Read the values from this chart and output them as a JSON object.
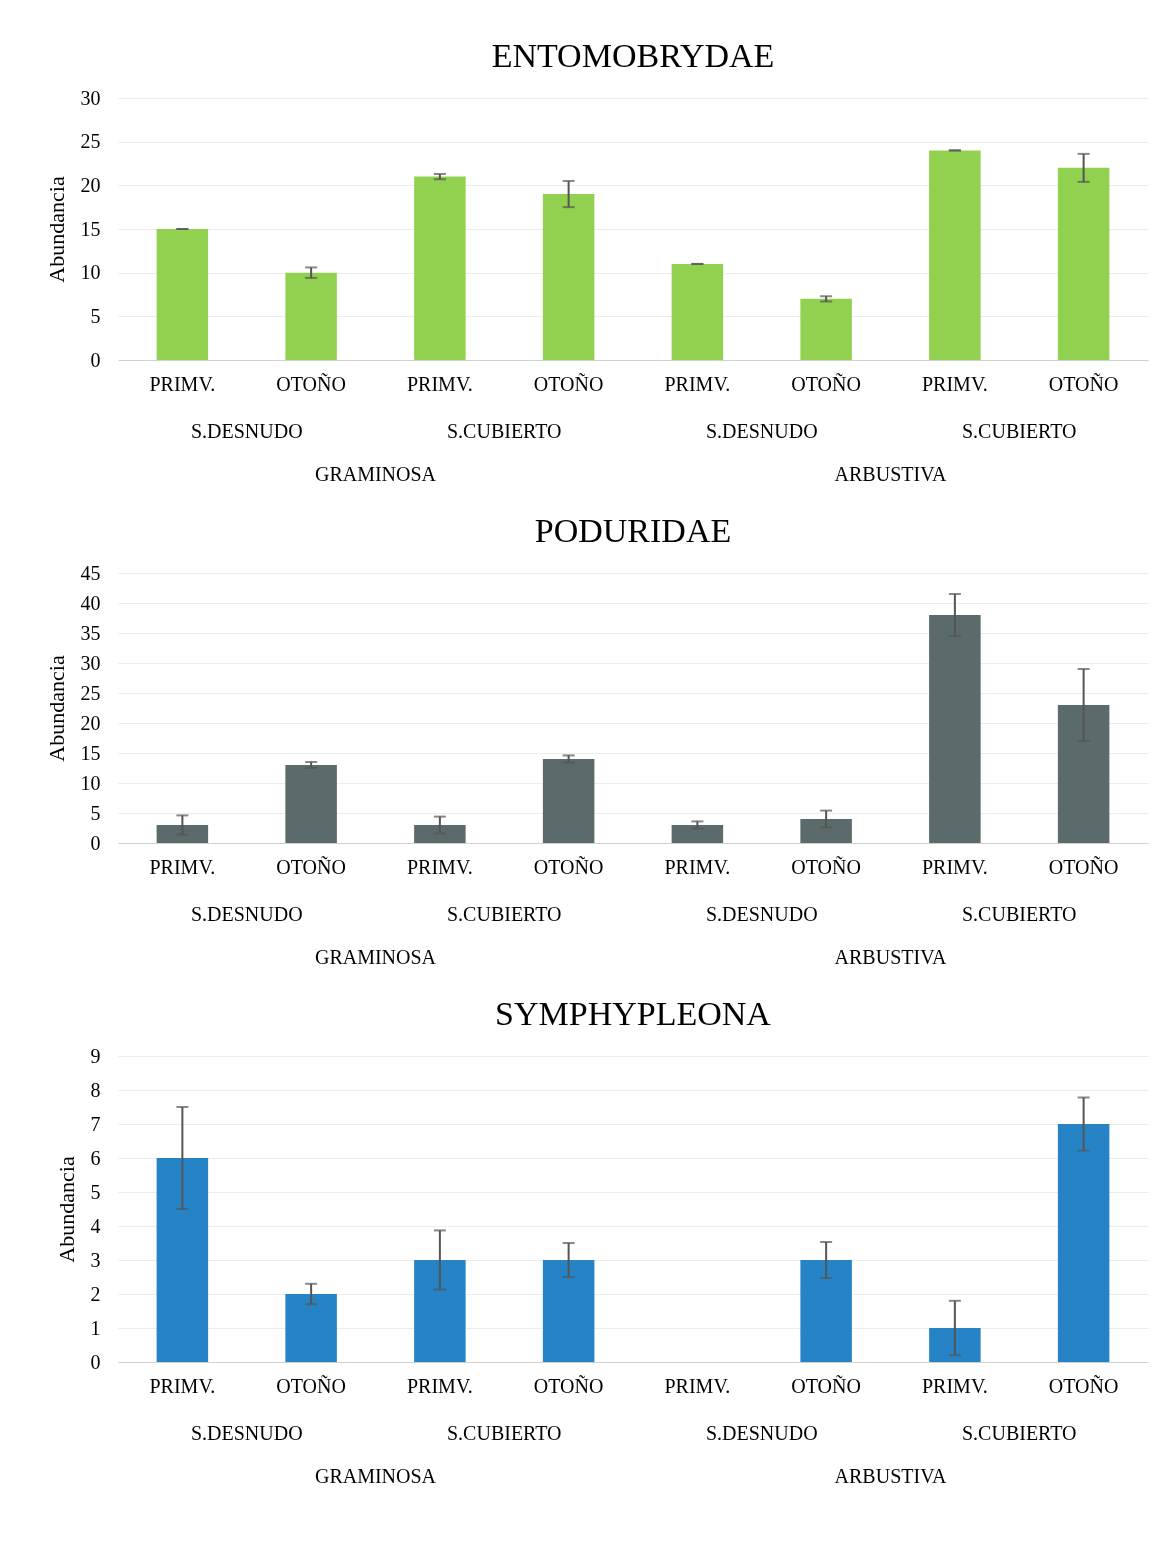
{
  "chart_data": [
    {
      "type": "bar",
      "title": "ENTOMOBRYDAE",
      "ylabel": "Abundancia",
      "categories": [
        "PRIMV.",
        "OTOÑO",
        "PRIMV.",
        "OTOÑO",
        "PRIMV.",
        "OTOÑO",
        "PRIMV.",
        "OTOÑO"
      ],
      "values": [
        15,
        10,
        21,
        19,
        11,
        7,
        24,
        22
      ],
      "errors": [
        0,
        0.6,
        0.3,
        1.5,
        0,
        0.3,
        0,
        1.6
      ],
      "color": "#92d050",
      "ylim": [
        0,
        30
      ],
      "yticks": [
        0,
        5,
        10,
        15,
        20,
        25,
        30
      ],
      "grid": "y",
      "annotations": [
        "S.DESNUDO",
        "S.CUBIERTO",
        "S.DESNUDO",
        "S.CUBIERTO",
        "GRAMINOSA",
        "ARBUSTIVA"
      ]
    },
    {
      "type": "bar",
      "title": "PODURIDAE",
      "ylabel": "Abundancia",
      "categories": [
        "PRIMV.",
        "OTOÑO",
        "PRIMV.",
        "OTOÑO",
        "PRIMV.",
        "OTOÑO",
        "PRIMV.",
        "OTOÑO"
      ],
      "values": [
        3,
        13,
        3,
        14,
        3,
        4,
        38,
        23
      ],
      "errors": [
        1.6,
        0.5,
        1.4,
        0.6,
        0.6,
        1.4,
        3.5,
        6
      ],
      "color": "#5b6a6a",
      "ylim": [
        0,
        45
      ],
      "yticks": [
        0,
        5,
        10,
        15,
        20,
        25,
        30,
        35,
        40,
        45
      ],
      "grid": "y",
      "annotations": [
        "S.DESNUDO",
        "S.CUBIERTO",
        "S.DESNUDO",
        "S.CUBIERTO",
        "GRAMINOSA",
        "ARBUSTIVA"
      ]
    },
    {
      "type": "bar",
      "title": "SYMPHYPLEONA",
      "ylabel": "Abundancia",
      "categories": [
        "PRIMV.",
        "OTOÑO",
        "PRIMV.",
        "OTOÑO",
        "PRIMV.",
        "OTOÑO",
        "PRIMV.",
        "OTOÑO"
      ],
      "values": [
        6,
        2,
        3,
        3,
        0,
        3,
        1,
        7
      ],
      "errors": [
        1.5,
        0.3,
        0.87,
        0.5,
        null,
        0.53,
        0.8,
        0.78
      ],
      "color": "#2683c6",
      "ylim": [
        0,
        9
      ],
      "yticks": [
        0,
        1,
        2,
        3,
        4,
        5,
        6,
        7,
        8,
        9
      ],
      "grid": "y",
      "annotations": [
        "S.DESNUDO",
        "S.CUBIERTO",
        "S.DESNUDO",
        "S.CUBIERTO",
        "GRAMINOSA",
        "ARBUSTIVA"
      ]
    }
  ]
}
